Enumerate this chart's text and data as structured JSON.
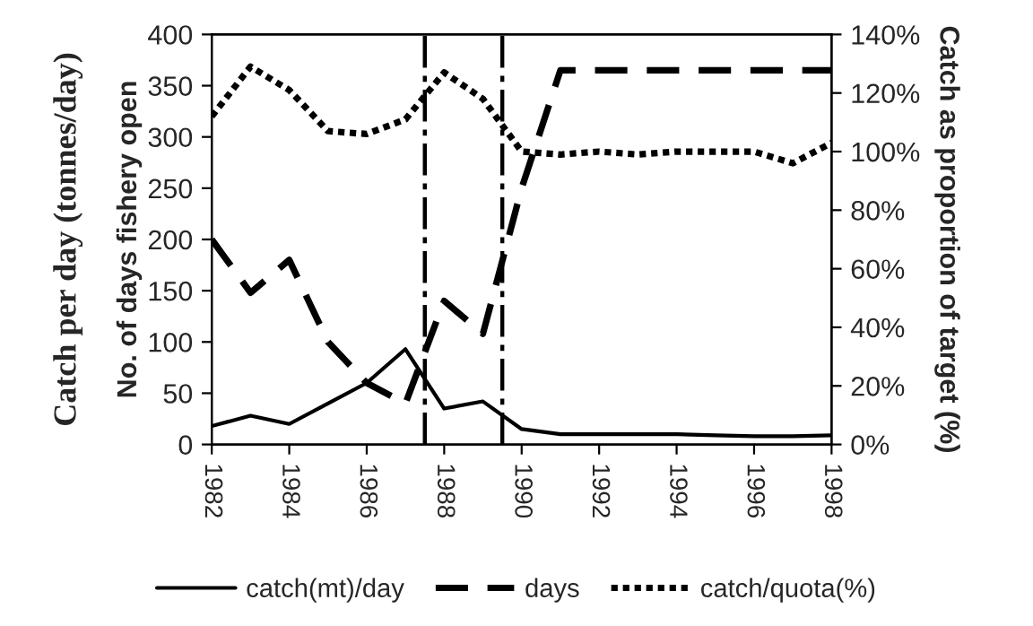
{
  "chart_data": {
    "type": "line",
    "ylabel": "Catch per day (tonnes/day)",
    "y2label": "Catch as proportion of target (%)",
    "annotations": [
      "No. of days fishery open"
    ],
    "x": [
      1982,
      1983,
      1984,
      1985,
      1986,
      1987,
      1988,
      1989,
      1990,
      1991,
      1992,
      1993,
      1994,
      1995,
      1996,
      1997,
      1998
    ],
    "series": [
      {
        "name": "catch(mt)/day",
        "color": "#000000",
        "line_style": "solid",
        "values": [
          18,
          28,
          20,
          40,
          60,
          93,
          35,
          42,
          15,
          10,
          10,
          10,
          10,
          9,
          8,
          8,
          9
        ]
      },
      {
        "name": "days",
        "color": "#000000",
        "line_style": "dashed",
        "values": [
          200,
          148,
          180,
          100,
          60,
          40,
          140,
          108,
          250,
          365,
          365,
          365,
          365,
          365,
          365,
          365,
          365
        ]
      },
      {
        "name": "catch/quota(%)",
        "color": "#000000",
        "line_style": "dotted",
        "axis": "y2",
        "values": [
          112,
          129,
          121,
          107,
          106,
          111,
          127,
          118,
          100,
          99,
          100,
          99,
          100,
          100,
          100,
          96,
          103
        ]
      }
    ],
    "ref_lines": [
      {
        "axis": "x",
        "value": 1987.5,
        "color": "#000000",
        "line_style": "dashdot"
      },
      {
        "axis": "x",
        "value": 1989.5,
        "color": "#000000",
        "line_style": "dashdot"
      }
    ],
    "xlim": [
      1982,
      1998
    ],
    "xticks": [
      1982,
      1984,
      1986,
      1988,
      1990,
      1992,
      1994,
      1996,
      1998
    ],
    "ylim": [
      0,
      400
    ],
    "yticks": [
      0,
      50,
      100,
      150,
      200,
      250,
      300,
      350,
      400
    ],
    "y2lim": [
      0,
      140
    ],
    "y2ticks": [
      {
        "value": 0,
        "label": "0%"
      },
      {
        "value": 20,
        "label": "20%"
      },
      {
        "value": 40,
        "label": "40%"
      },
      {
        "value": 60,
        "label": "60%"
      },
      {
        "value": 80,
        "label": "80%"
      },
      {
        "value": 100,
        "label": "100%"
      },
      {
        "value": 120,
        "label": "120%"
      },
      {
        "value": 140,
        "label": "140%"
      }
    ],
    "grid": false,
    "legend": "bottom"
  }
}
